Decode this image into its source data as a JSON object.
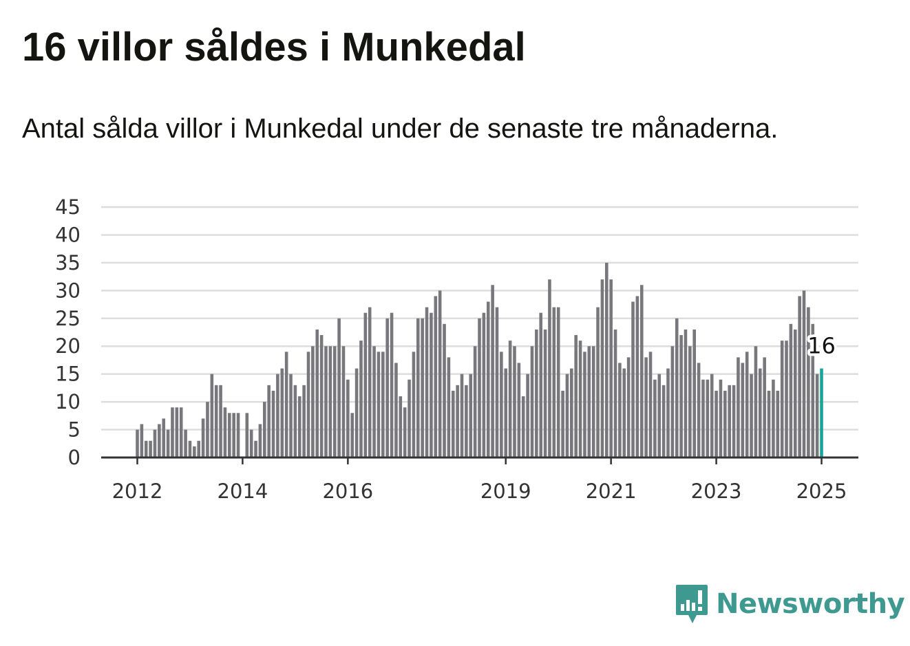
{
  "title": "16 villor såldes i Munkedal",
  "subtitle": "Antal sålda villor i Munkedal under de senaste tre månaderna.",
  "brand": {
    "name": "Newsworthy",
    "color": "#3e9a91",
    "icon": "newsworthy-logo-icon"
  },
  "colors": {
    "bar": "#78787c",
    "highlight": "#1aa399",
    "grid": "#dddddd",
    "axis": "#333333"
  },
  "chart_data": {
    "type": "bar",
    "title": "16 villor såldes i Munkedal",
    "subtitle": "Antal sålda villor i Munkedal under de senaste tre månaderna.",
    "xlabel": "",
    "ylabel": "",
    "ylim": [
      0,
      45
    ],
    "yticks": [
      0,
      5,
      10,
      15,
      20,
      25,
      30,
      35,
      40,
      45
    ],
    "xticks": [
      "2012",
      "2014",
      "2016",
      "2019",
      "2021",
      "2023",
      "2025"
    ],
    "grid": true,
    "frequency": "monthly",
    "start": "2012-01",
    "end": "2025-01",
    "values": [
      5,
      6,
      3,
      3,
      5,
      6,
      7,
      5,
      9,
      9,
      9,
      5,
      3,
      2,
      3,
      7,
      10,
      15,
      13,
      13,
      9,
      8,
      8,
      8,
      0,
      8,
      5,
      3,
      6,
      10,
      13,
      12,
      15,
      16,
      19,
      15,
      13,
      11,
      13,
      19,
      20,
      23,
      22,
      20,
      20,
      20,
      25,
      20,
      14,
      8,
      16,
      21,
      26,
      27,
      20,
      19,
      19,
      25,
      26,
      17,
      11,
      9,
      14,
      19,
      25,
      25,
      27,
      26,
      29,
      30,
      24,
      18,
      12,
      13,
      15,
      13,
      15,
      20,
      25,
      26,
      28,
      31,
      27,
      19,
      16,
      21,
      20,
      17,
      11,
      15,
      20,
      23,
      26,
      23,
      32,
      27,
      27,
      12,
      15,
      16,
      22,
      21,
      19,
      20,
      20,
      27,
      32,
      35,
      32,
      23,
      17,
      16,
      18,
      28,
      29,
      31,
      18,
      19,
      14,
      15,
      13,
      16,
      20,
      25,
      22,
      23,
      20,
      23,
      17,
      14,
      14,
      15,
      12,
      14,
      12,
      13,
      13,
      18,
      17,
      19,
      15,
      20,
      16,
      18,
      12,
      14,
      12,
      21,
      21,
      24,
      23,
      29,
      30,
      27,
      24,
      15,
      16
    ],
    "highlight": {
      "label": "16",
      "value": 16,
      "date": "2025-01"
    }
  }
}
